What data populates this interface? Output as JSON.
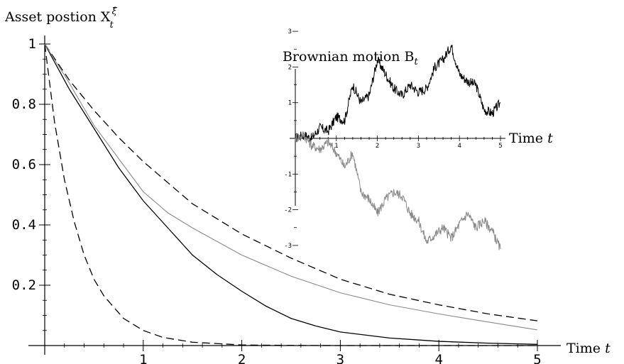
{
  "chart_data": [
    {
      "type": "line",
      "title": "",
      "ylabel": "Asset postion X",
      "ylabel_sup": "ξ̂",
      "ylabel_sub": "t",
      "xlabel": "Time t",
      "xlim": [
        0,
        5
      ],
      "ylim": [
        0,
        1
      ],
      "x_ticks": [
        1,
        2,
        3,
        4,
        5
      ],
      "x_tick_labels": [
        "1",
        "2",
        "3",
        "4",
        "5"
      ],
      "y_ticks": [
        0.2,
        0.4,
        0.6,
        0.8,
        1
      ],
      "y_tick_labels": [
        "0.2",
        "0.4",
        "0.6",
        "0.8",
        "1"
      ],
      "grid": false,
      "legend": "none",
      "series": [
        {
          "style": "dashed",
          "color": "#000000",
          "x": [
            0,
            0.25,
            0.5,
            0.75,
            1,
            1.5,
            2,
            2.5,
            3,
            3.5,
            4,
            4.5,
            5
          ],
          "y": [
            1,
            0.88,
            0.78,
            0.69,
            0.61,
            0.47,
            0.37,
            0.29,
            0.22,
            0.17,
            0.135,
            0.105,
            0.082
          ]
        },
        {
          "style": "dashed",
          "color": "#000000",
          "x": [
            0,
            0.1,
            0.2,
            0.3,
            0.4,
            0.5,
            0.6,
            0.8,
            1,
            1.2,
            1.5,
            2,
            2.5,
            3,
            4,
            5
          ],
          "y": [
            1,
            0.74,
            0.55,
            0.41,
            0.3,
            0.22,
            0.165,
            0.09,
            0.05,
            0.027,
            0.011,
            0.002,
            0.0005,
            0,
            0,
            0
          ]
        },
        {
          "style": "solid",
          "color": "#000000",
          "x": [
            0,
            0.25,
            0.5,
            0.75,
            1,
            1.25,
            1.5,
            1.75,
            2,
            2.25,
            2.5,
            2.75,
            3,
            3.5,
            4,
            4.5,
            5
          ],
          "y": [
            1,
            0.85,
            0.72,
            0.59,
            0.48,
            0.39,
            0.3,
            0.235,
            0.18,
            0.13,
            0.09,
            0.065,
            0.045,
            0.025,
            0.014,
            0.008,
            0.004
          ]
        },
        {
          "style": "solid",
          "color": "#8a8a8a",
          "x": [
            0,
            0.25,
            0.5,
            0.75,
            1,
            1.25,
            1.5,
            2,
            2.5,
            3,
            3.5,
            4,
            4.5,
            5
          ],
          "y": [
            1,
            0.87,
            0.73,
            0.62,
            0.51,
            0.44,
            0.39,
            0.3,
            0.23,
            0.175,
            0.135,
            0.105,
            0.078,
            0.052
          ]
        }
      ]
    },
    {
      "type": "line",
      "title": "Brownian motion B",
      "title_sub": "t",
      "xlabel": "Time t",
      "xlim": [
        0,
        5
      ],
      "ylim": [
        -3.2,
        3.2
      ],
      "x_ticks": [
        1,
        2,
        3,
        4,
        5
      ],
      "x_tick_labels": [
        "1",
        "2",
        "3",
        "4",
        "5"
      ],
      "y_ticks": [
        -3,
        -2,
        -1,
        1,
        2,
        3
      ],
      "y_tick_labels": [
        "-3",
        "-2",
        "-1",
        "1",
        "2",
        "3"
      ],
      "grid": false,
      "legend": "none",
      "series": [
        {
          "color": "#000000",
          "x": [
            0,
            0.2,
            0.4,
            0.6,
            0.8,
            1,
            1.2,
            1.4,
            1.6,
            1.8,
            2,
            2.2,
            2.4,
            2.6,
            2.8,
            3,
            3.2,
            3.4,
            3.6,
            3.8,
            4,
            4.2,
            4.4,
            4.6,
            4.8,
            5
          ],
          "y": [
            0,
            0.1,
            0,
            0.3,
            0.2,
            0.6,
            0.5,
            1.5,
            1.0,
            1.2,
            2.2,
            1.8,
            1.4,
            1.2,
            1.5,
            1.3,
            1.4,
            2.0,
            2.2,
            2.6,
            1.8,
            1.6,
            1.5,
            0.8,
            0.7,
            1.0
          ]
        },
        {
          "color": "#8a8a8a",
          "x": [
            0,
            0.2,
            0.4,
            0.6,
            0.8,
            1,
            1.2,
            1.4,
            1.6,
            1.8,
            2,
            2.2,
            2.4,
            2.6,
            2.8,
            3,
            3.2,
            3.4,
            3.6,
            3.8,
            4,
            4.2,
            4.4,
            4.6,
            4.8,
            5
          ],
          "y": [
            0,
            0.1,
            -0.2,
            -0.3,
            -0.1,
            -0.4,
            -0.8,
            -0.4,
            -1.5,
            -1.7,
            -2.1,
            -1.7,
            -1.5,
            -1.6,
            -2.1,
            -2.3,
            -2.9,
            -2.7,
            -2.5,
            -2.8,
            -2.4,
            -2.1,
            -2.5,
            -2.3,
            -2.6,
            -3.1
          ]
        }
      ]
    }
  ]
}
